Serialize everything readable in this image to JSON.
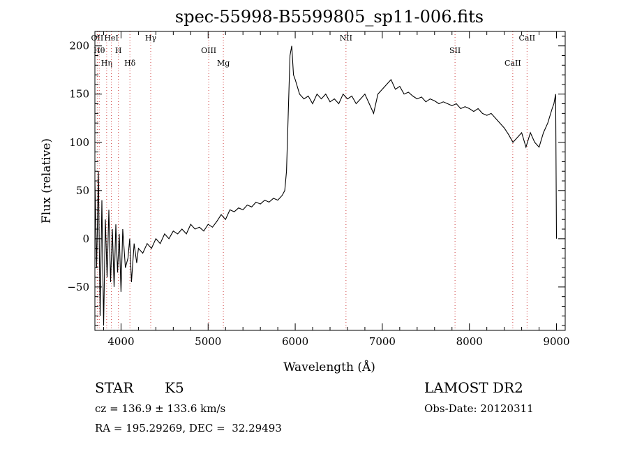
{
  "chart_data": {
    "type": "line",
    "title": "spec-55998-B5599805_sp11-006.fits",
    "xlabel": "Wavelength (Å)",
    "ylabel": "Flux (relative)",
    "xlim": [
      3700,
      9100
    ],
    "ylim": [
      -95,
      215
    ],
    "xticks": [
      4000,
      5000,
      6000,
      7000,
      8000,
      9000
    ],
    "yticks": [
      -50,
      0,
      50,
      100,
      150,
      200
    ],
    "grid": false,
    "series": [
      {
        "x": [
          3700,
          3720,
          3740,
          3760,
          3780,
          3800,
          3820,
          3840,
          3860,
          3880,
          3900,
          3920,
          3940,
          3960,
          3980,
          4000,
          4020,
          4050,
          4080,
          4100,
          4120,
          4150,
          4180,
          4200,
          4250,
          4300,
          4350,
          4400,
          4450,
          4500,
          4550,
          4600,
          4650,
          4700,
          4750,
          4800,
          4850,
          4900,
          4950,
          5000,
          5050,
          5100,
          5150,
          5200,
          5250,
          5300,
          5350,
          5400,
          5450,
          5500,
          5550,
          5600,
          5650,
          5700,
          5750,
          5800,
          5850,
          5880,
          5900,
          5920,
          5940,
          5960,
          5980,
          6000,
          6050,
          6100,
          6150,
          6200,
          6250,
          6300,
          6350,
          6400,
          6450,
          6500,
          6550,
          6600,
          6650,
          6700,
          6750,
          6800,
          6850,
          6900,
          6950,
          7000,
          7050,
          7100,
          7150,
          7200,
          7250,
          7300,
          7350,
          7400,
          7450,
          7500,
          7550,
          7600,
          7650,
          7700,
          7750,
          7800,
          7850,
          7900,
          7950,
          8000,
          8050,
          8100,
          8150,
          8200,
          8250,
          8300,
          8350,
          8400,
          8450,
          8500,
          8550,
          8600,
          8650,
          8700,
          8750,
          8800,
          8850,
          8900,
          8950,
          8970,
          8990,
          9000
        ],
        "values": [
          60,
          -30,
          70,
          -80,
          40,
          -90,
          20,
          -40,
          30,
          -45,
          10,
          -50,
          15,
          -35,
          5,
          -55,
          10,
          -30,
          -20,
          0,
          -45,
          -5,
          -25,
          -10,
          -15,
          -5,
          -10,
          0,
          -5,
          5,
          0,
          8,
          5,
          10,
          5,
          15,
          10,
          12,
          8,
          15,
          12,
          18,
          25,
          20,
          30,
          28,
          32,
          30,
          35,
          33,
          38,
          36,
          40,
          38,
          42,
          40,
          45,
          50,
          70,
          130,
          190,
          200,
          170,
          165,
          150,
          145,
          148,
          140,
          150,
          145,
          150,
          142,
          145,
          140,
          150,
          145,
          148,
          140,
          145,
          150,
          140,
          130,
          150,
          155,
          160,
          165,
          155,
          158,
          150,
          152,
          148,
          145,
          147,
          142,
          145,
          143,
          140,
          142,
          140,
          138,
          140,
          135,
          137,
          135,
          132,
          135,
          130,
          128,
          130,
          125,
          120,
          115,
          108,
          100,
          105,
          110,
          95,
          110,
          100,
          95,
          110,
          120,
          135,
          140,
          150,
          0
        ]
      }
    ],
    "lines": [
      {
        "x": 3727,
        "label": "OII"
      },
      {
        "x": 3750,
        "label": "Hθ"
      },
      {
        "x": 3835,
        "label": "Hη"
      },
      {
        "x": 3889,
        "label": "HeI"
      },
      {
        "x": 3970,
        "label": "H"
      },
      {
        "x": 4102,
        "label": "Hδ"
      },
      {
        "x": 4341,
        "label": "Hγ"
      },
      {
        "x": 5007,
        "label": "OIII"
      },
      {
        "x": 5175,
        "label": "Mg"
      },
      {
        "x": 6583,
        "label": "NII"
      },
      {
        "x": 7835,
        "label": "SII"
      },
      {
        "x": 8498,
        "label": "CaII"
      },
      {
        "x": 8662,
        "label": "CaII"
      }
    ]
  },
  "info": {
    "class": "STAR",
    "subclass": "K5",
    "survey": "LAMOST DR2",
    "cz": "cz = 136.9 ± 133.6 km/s",
    "obs_date": "Obs-Date: 20120311",
    "coords": "RA = 195.29269, DEC =  32.29493"
  }
}
